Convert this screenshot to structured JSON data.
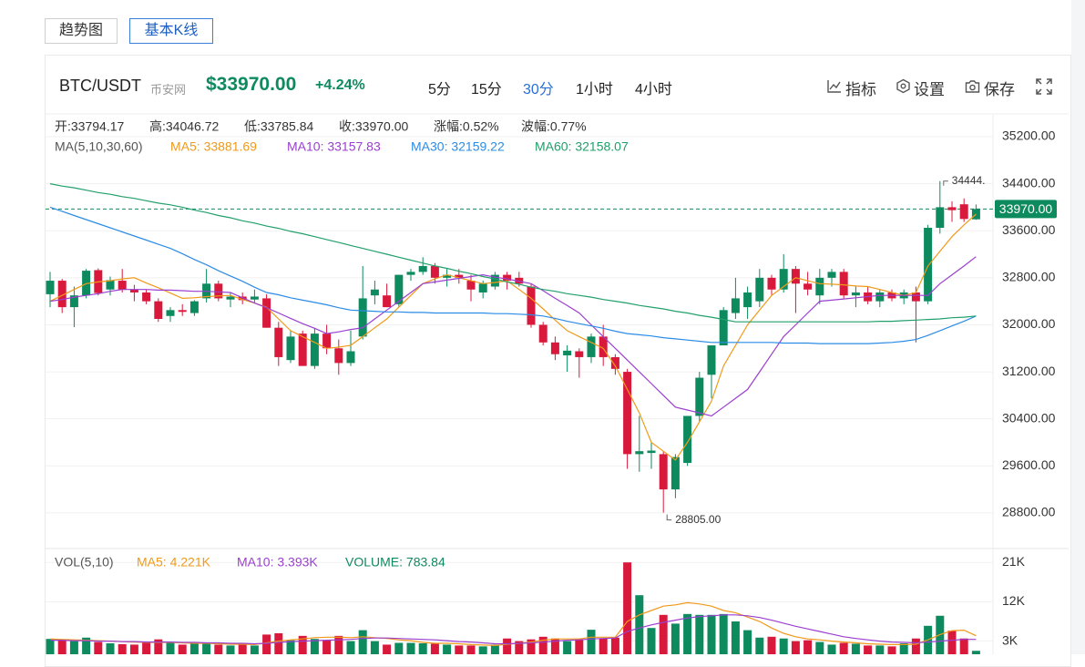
{
  "tabs": [
    "趋势图",
    "基本K线"
  ],
  "header": {
    "symbol": "BTC/USDT",
    "exchange": "币安网",
    "price": "$33970.00",
    "change": "+4.24%",
    "intervals": [
      "5分",
      "15分",
      "30分",
      "1小时",
      "4小时"
    ],
    "tools": [
      "指标",
      "设置",
      "保存"
    ]
  },
  "chart_data": {
    "type": "candlestick",
    "info": [
      "开:33794.17",
      "高:34046.72",
      "低:33785.84",
      "收:33970.00",
      "涨幅:0.52%",
      "波幅:0.77%"
    ],
    "ma_title": "MA(5,10,30,60)",
    "up_color": "#0e8a5f",
    "down_color": "#d8193c",
    "open": [
      32520,
      32750,
      32300,
      32500,
      32930,
      32600,
      32750,
      32600,
      32550,
      32400,
      32150,
      32250,
      32200,
      32450,
      32700,
      32430,
      32480,
      32430,
      32450,
      31950,
      31400,
      31850,
      31300,
      31850,
      31600,
      31350,
      31800,
      32500,
      32500,
      32350,
      32850,
      32900,
      33000,
      32800,
      32850,
      32750,
      32550,
      32650,
      32850,
      32800,
      32650,
      32000,
      31700,
      31480,
      31550,
      31450,
      31800,
      31450,
      31200,
      29800,
      29820,
      29800,
      29200,
      29650,
      30450,
      31150,
      31650,
      32200,
      32300,
      32400,
      32800,
      32600,
      32950,
      32700,
      32500,
      32800,
      32900,
      32500,
      32550,
      32400,
      32550,
      32450,
      32550,
      32400,
      33650,
      34000,
      34050,
      33794.17
    ],
    "high": [
      32900,
      32780,
      32650,
      32950,
      32960,
      32820,
      32950,
      32680,
      32600,
      32450,
      32300,
      32350,
      32420,
      32950,
      32750,
      32550,
      32550,
      32600,
      32520,
      32050,
      31900,
      31900,
      31950,
      32000,
      31750,
      31900,
      33000,
      32750,
      32700,
      32850,
      32950,
      33150,
      33050,
      32950,
      32950,
      32850,
      32750,
      32900,
      32900,
      32900,
      32700,
      32050,
      31800,
      31650,
      31600,
      31850,
      32000,
      31500,
      31250,
      30450,
      30000,
      29850,
      29800,
      30450,
      31200,
      31650,
      32300,
      32800,
      32650,
      32950,
      32850,
      33200,
      33000,
      32900,
      32950,
      32950,
      32950,
      32650,
      32650,
      32600,
      32600,
      32600,
      32650,
      33700,
      34444.72,
      34100,
      34150,
      34046.72
    ],
    "low": [
      32300,
      32200,
      31960,
      32450,
      32500,
      32500,
      32550,
      32400,
      32350,
      32050,
      32050,
      32150,
      32150,
      32380,
      32400,
      32300,
      32350,
      32380,
      31950,
      31300,
      31350,
      31300,
      31250,
      31500,
      31150,
      31300,
      31750,
      32350,
      32300,
      32300,
      32750,
      32850,
      32700,
      32650,
      32700,
      32400,
      32450,
      32600,
      32600,
      32650,
      31950,
      31650,
      31400,
      31200,
      31100,
      31350,
      31300,
      31150,
      29550,
      29500,
      29550,
      28805,
      29050,
      29600,
      30350,
      30750,
      31650,
      32100,
      32100,
      32300,
      32500,
      32550,
      32200,
      32500,
      32350,
      32650,
      32450,
      32300,
      32350,
      32300,
      32400,
      32350,
      31700,
      32350,
      33550,
      33750,
      33750,
      33785.84
    ],
    "close": [
      32750,
      32300,
      32500,
      32920,
      32540,
      32760,
      32600,
      32550,
      32400,
      32100,
      32250,
      32220,
      32400,
      32700,
      32450,
      32480,
      32420,
      32480,
      31950,
      31450,
      31800,
      31300,
      31850,
      31600,
      31350,
      31550,
      32450,
      32600,
      32300,
      32850,
      32900,
      33000,
      32800,
      32850,
      32800,
      32600,
      32700,
      32850,
      32750,
      32700,
      32000,
      31700,
      31500,
      31560,
      31450,
      31800,
      31450,
      31250,
      29800,
      29850,
      29860,
      29200,
      29750,
      30450,
      31100,
      31650,
      32250,
      32450,
      32550,
      32800,
      32600,
      32950,
      32700,
      32600,
      32800,
      32900,
      32500,
      32550,
      32400,
      32550,
      32450,
      32550,
      32400,
      33650,
      34000,
      33950,
      33800,
      33970
    ],
    "ylim": [
      28225,
      35572
    ],
    "yticks": [
      {
        "value": 35200,
        "label": "35200.00"
      },
      {
        "value": 34400,
        "label": "34400.00"
      },
      {
        "value": 33600,
        "label": "33600.00"
      },
      {
        "value": 32800,
        "label": "32800.00"
      },
      {
        "value": 32000,
        "label": "32000.00"
      },
      {
        "value": 31200,
        "label": "31200.00"
      },
      {
        "value": 30400,
        "label": "30400.00"
      },
      {
        "value": 29600,
        "label": "29600.00"
      },
      {
        "value": 28800,
        "label": "28800.00"
      }
    ],
    "grid": true,
    "price_line": {
      "value": 33970,
      "label": "33970.00",
      "color": "#0e8a5f"
    },
    "high_label": "34444.",
    "low_label": "28805.00",
    "lines": [
      {
        "name": "MA5: 33881.69",
        "color": "#f09a1a",
        "values": [
          32400,
          32500,
          32600,
          32700,
          32730,
          32750,
          32780,
          32800,
          32710,
          32630,
          32540,
          32450,
          32460,
          32480,
          32490,
          32500,
          32430,
          32370,
          32300,
          32100,
          31900,
          31800,
          31700,
          31600,
          31620,
          31650,
          31800,
          31950,
          32100,
          32300,
          32500,
          32700,
          32780,
          32850,
          32800,
          32750,
          32700,
          32720,
          32750,
          32600,
          32450,
          32270,
          32080,
          31900,
          31800,
          31700,
          31600,
          31300,
          30900,
          30500,
          30000,
          29850,
          29700,
          30000,
          30350,
          30700,
          31300,
          31650,
          32000,
          32250,
          32500,
          32650,
          32800,
          32750,
          32700,
          32690,
          32680,
          32660,
          32650,
          32600,
          32550,
          32500,
          32550,
          33000,
          33250,
          33500,
          33700,
          33882
        ]
      },
      {
        "name": "MA10: 33157.83",
        "color": "#9b3fd0",
        "values": [
          32400,
          32430,
          32470,
          32500,
          32530,
          32570,
          32600,
          32600,
          32600,
          32590,
          32590,
          32580,
          32570,
          32570,
          32560,
          32550,
          32460,
          32370,
          32290,
          32200,
          32110,
          32020,
          31940,
          31850,
          31880,
          31920,
          31950,
          32100,
          32250,
          32400,
          32550,
          32700,
          32730,
          32760,
          32790,
          32820,
          32850,
          32810,
          32780,
          32740,
          32700,
          32580,
          32450,
          32330,
          32200,
          32000,
          31800,
          31600,
          31400,
          31200,
          31000,
          30800,
          30600,
          30550,
          30500,
          30450,
          30600,
          30750,
          30900,
          31200,
          31500,
          31800,
          32000,
          32200,
          32400,
          32420,
          32440,
          32460,
          32480,
          32500,
          32500,
          32500,
          32500,
          32500,
          32700,
          32850,
          33000,
          33158
        ]
      },
      {
        "name": "MA30: 32159.22",
        "color": "#2b8ce6",
        "values": [
          34000,
          33930,
          33860,
          33790,
          33720,
          33650,
          33580,
          33510,
          33440,
          33370,
          33300,
          33210,
          33110,
          33020,
          32920,
          32830,
          32740,
          32640,
          32550,
          32510,
          32460,
          32420,
          32380,
          32340,
          32290,
          32250,
          32240,
          32230,
          32220,
          32220,
          32210,
          32210,
          32200,
          32200,
          32200,
          32200,
          32200,
          32190,
          32190,
          32180,
          32170,
          32150,
          32110,
          32060,
          32020,
          31980,
          31940,
          31890,
          31850,
          31830,
          31810,
          31780,
          31760,
          31740,
          31720,
          31700,
          31700,
          31700,
          31700,
          31700,
          31700,
          31690,
          31690,
          31690,
          31680,
          31680,
          31680,
          31680,
          31680,
          31690,
          31700,
          31720,
          31750,
          31820,
          31900,
          31980,
          32060,
          32150
        ]
      },
      {
        "name": "MA60: 32158.07",
        "color": "#22a06b",
        "values": [
          34400,
          34360,
          34330,
          34290,
          34250,
          34220,
          34180,
          34150,
          34110,
          34070,
          34040,
          34000,
          33950,
          33910,
          33860,
          33820,
          33770,
          33730,
          33680,
          33640,
          33590,
          33550,
          33500,
          33450,
          33400,
          33350,
          33300,
          33250,
          33200,
          33150,
          33100,
          33050,
          33000,
          32960,
          32910,
          32870,
          32820,
          32780,
          32730,
          32690,
          32640,
          32600,
          32570,
          32530,
          32500,
          32470,
          32430,
          32400,
          32370,
          32330,
          32300,
          32270,
          32230,
          32200,
          32160,
          32130,
          32090,
          32050,
          32050,
          32050,
          32050,
          32050,
          32050,
          32050,
          32050,
          32050,
          32050,
          32050,
          32050,
          32060,
          32060,
          32070,
          32080,
          32090,
          32100,
          32120,
          32130,
          32150
        ]
      }
    ],
    "volume": {
      "title": "VOL(5,10)",
      "current": "VOLUME: 783.84",
      "current_color": "#0e8a5f",
      "values": [
        3500,
        3200,
        3000,
        3800,
        2800,
        2500,
        2300,
        2200,
        2600,
        3400,
        2600,
        2200,
        2400,
        2600,
        2200,
        2000,
        2300,
        2000,
        4500,
        4800,
        3200,
        4200,
        3500,
        3200,
        4200,
        3000,
        5500,
        3000,
        2200,
        2600,
        2600,
        2500,
        2400,
        2200,
        2000,
        2000,
        1800,
        2200,
        3600,
        3000,
        3400,
        4000,
        3600,
        3000,
        3400,
        5600,
        3600,
        3800,
        21000,
        13500,
        6000,
        9000,
        7000,
        9200,
        9000,
        9000,
        9200,
        7500,
        5500,
        3800,
        4000,
        3600,
        3000,
        3200,
        2800,
        2200,
        2600,
        2400,
        2000,
        2000,
        1800,
        2500,
        3600,
        6500,
        8800,
        5400,
        3600,
        783.84
      ],
      "ylim": [
        0,
        23750
      ],
      "yticks": [
        {
          "value": 21000,
          "label": "21K"
        },
        {
          "value": 12000,
          "label": "12K"
        },
        {
          "value": 3000,
          "label": "3K"
        }
      ],
      "lines": [
        {
          "name": "MA5: 4.221K",
          "color": "#f09a1a",
          "values": [
            3500,
            3400,
            3300,
            3200,
            3100,
            3000,
            2900,
            2800,
            2700,
            2700,
            2700,
            2600,
            2500,
            2500,
            2400,
            2300,
            2300,
            2200,
            2600,
            3000,
            3300,
            3500,
            3800,
            3900,
            3900,
            3800,
            4000,
            3800,
            3600,
            3300,
            3100,
            2700,
            2500,
            2500,
            2400,
            2200,
            2100,
            2000,
            2300,
            2500,
            2800,
            3200,
            3500,
            3500,
            3500,
            3900,
            3900,
            3900,
            7500,
            9000,
            10000,
            11000,
            11300,
            11800,
            11500,
            11000,
            10000,
            9500,
            8500,
            7500,
            6000,
            4800,
            4000,
            3500,
            3300,
            3000,
            2800,
            2600,
            2400,
            2300,
            2200,
            2200,
            2300,
            3300,
            4500,
            5400,
            5500,
            4221
          ]
        },
        {
          "name": "MA10: 3.393K",
          "color": "#9b3fd0",
          "values": [
            3200,
            3200,
            3100,
            3100,
            3000,
            3000,
            2900,
            2900,
            2800,
            2800,
            2800,
            2700,
            2700,
            2600,
            2600,
            2500,
            2500,
            2400,
            2500,
            2700,
            2900,
            3000,
            3100,
            3200,
            3300,
            3400,
            3600,
            3700,
            3700,
            3600,
            3500,
            3400,
            3300,
            3100,
            2900,
            2800,
            2600,
            2400,
            2400,
            2500,
            2600,
            2800,
            3000,
            3200,
            3300,
            3500,
            3600,
            3700,
            5200,
            6000,
            6700,
            7300,
            7800,
            8300,
            8600,
            8800,
            9000,
            9000,
            8800,
            8400,
            7800,
            7100,
            6400,
            5800,
            5200,
            4600,
            4000,
            3600,
            3300,
            3000,
            2800,
            2700,
            2600,
            2800,
            3000,
            3200,
            3400,
            3393
          ]
        }
      ]
    }
  }
}
